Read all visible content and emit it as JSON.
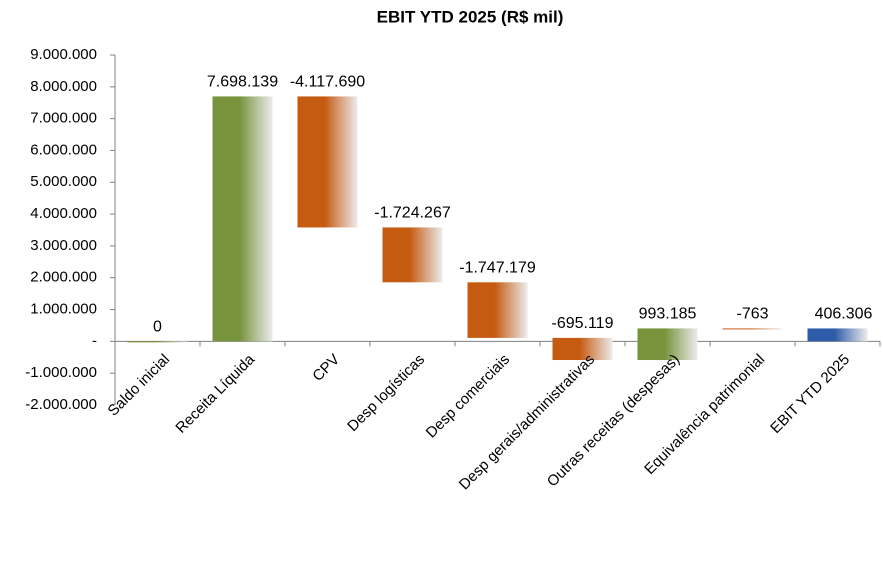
{
  "chart_data": {
    "type": "waterfall",
    "title": "EBIT YTD 2025 (R$ mil)",
    "categories": [
      "Saldo inicial",
      "Receita Líquida",
      "CPV",
      "Desp logísticas",
      "Desp comerciais",
      "Desp gerais/administrativas",
      "Outras receitas (despesas)",
      "Equivalência patrimonial",
      "EBIT YTD 2025"
    ],
    "values": [
      0,
      7698139,
      -4117690,
      -1724267,
      -1747179,
      -695119,
      993185,
      -763,
      406306
    ],
    "value_labels": [
      "0",
      "7.698.139",
      "-4.117.690",
      "-1.724.267",
      "-1.747.179",
      "-695.119",
      "993.185",
      "-763",
      "406.306"
    ],
    "colors": {
      "increase": "#77933c",
      "decrease": "#c55a11",
      "total": "#2e5ca8"
    },
    "ylim": [
      -2000000,
      9000000
    ],
    "yticks": [
      {
        "value": -2000000,
        "label": "-2.000.000"
      },
      {
        "value": -1000000,
        "label": "-1.000.000"
      },
      {
        "value": 0,
        "label": "-"
      },
      {
        "value": 1000000,
        "label": "1.000.000"
      },
      {
        "value": 2000000,
        "label": "2.000.000"
      },
      {
        "value": 3000000,
        "label": "3.000.000"
      },
      {
        "value": 4000000,
        "label": "4.000.000"
      },
      {
        "value": 5000000,
        "label": "5.000.000"
      },
      {
        "value": 6000000,
        "label": "6.000.000"
      },
      {
        "value": 7000000,
        "label": "7.000.000"
      },
      {
        "value": 8000000,
        "label": "8.000.000"
      },
      {
        "value": 9000000,
        "label": "9.000.000"
      }
    ],
    "grid": false
  }
}
